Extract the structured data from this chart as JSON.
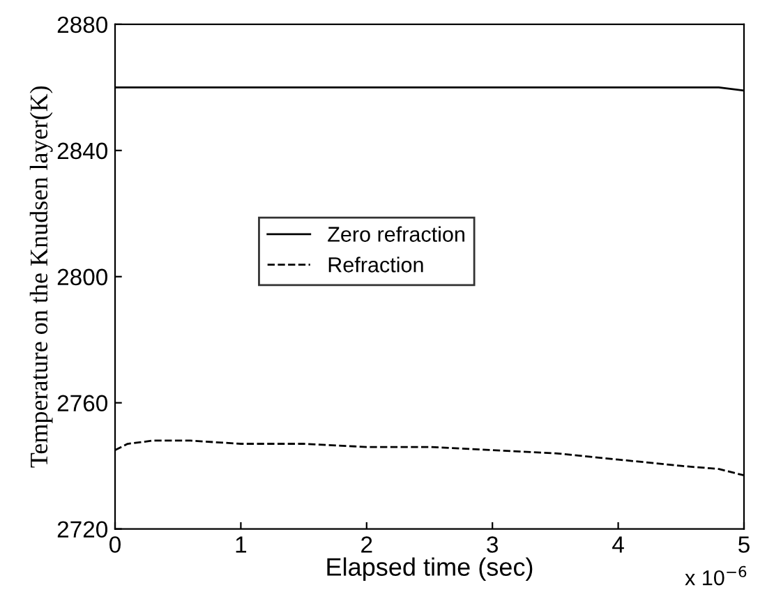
{
  "chart_data": {
    "type": "line",
    "xlabel": "Elapsed time (sec)",
    "ylabel": "Temperature on the Knudsen layer(K)",
    "x": [
      0,
      0.1,
      0.3,
      0.6,
      1,
      1.5,
      2,
      2.5,
      3,
      3.5,
      4,
      4.5,
      4.8,
      5
    ],
    "series": [
      {
        "name": "Zero refraction",
        "color": "#000000",
        "line_style": "solid",
        "values": [
          2860,
          2860,
          2860,
          2860,
          2860,
          2860,
          2860,
          2860,
          2860,
          2860,
          2860,
          2860,
          2860,
          2859
        ]
      },
      {
        "name": "Refraction",
        "color": "#000000",
        "line_style": "dashed",
        "values": [
          2745,
          2747,
          2748,
          2748,
          2747,
          2747,
          2746,
          2746,
          2745,
          2744,
          2742,
          2740,
          2739,
          2737
        ]
      }
    ],
    "xlim": [
      0,
      5
    ],
    "ylim": [
      2720,
      2880
    ],
    "xticks": [
      0,
      1,
      2,
      3,
      4,
      5
    ],
    "yticks": [
      2720,
      2760,
      2800,
      2840,
      2880
    ],
    "grid": false,
    "legend": "center",
    "annotations": [
      "x 10$^{−6}$"
    ]
  }
}
